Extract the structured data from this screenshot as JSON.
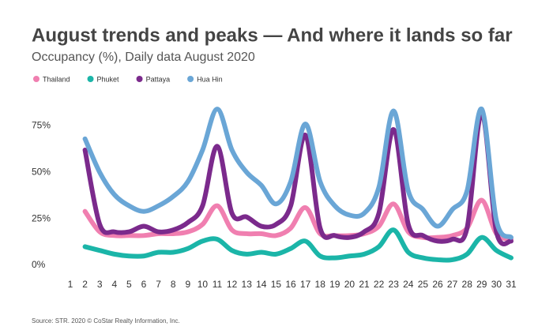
{
  "chart_data": {
    "type": "line",
    "title": "August trends and peaks — And where it lands so far",
    "subtitle": "Occupancy (%), Daily data August 2020",
    "source": "Source: STR. 2020 © CoStar Realty Information, Inc.",
    "x": [
      1,
      2,
      3,
      4,
      5,
      6,
      7,
      8,
      9,
      10,
      11,
      12,
      13,
      14,
      15,
      16,
      17,
      18,
      19,
      20,
      21,
      22,
      23,
      24,
      25,
      26,
      27,
      28,
      29,
      30,
      31
    ],
    "xlim": [
      1,
      31
    ],
    "ylim": [
      0,
      90
    ],
    "yticks": [
      {
        "value": 0,
        "label": "0%"
      },
      {
        "value": 25,
        "label": "25%"
      },
      {
        "value": 50,
        "label": "50%"
      },
      {
        "value": 75,
        "label": "75%"
      }
    ],
    "series": [
      {
        "name": "Thailand",
        "color": "#f07fb0",
        "values": [
          null,
          29,
          18,
          16,
          16,
          16,
          17,
          17,
          18,
          22,
          32,
          19,
          17,
          17,
          16,
          20,
          31,
          17,
          16,
          16,
          17,
          21,
          33,
          18,
          15,
          15,
          16,
          20,
          35,
          17,
          14
        ]
      },
      {
        "name": "Phuket",
        "color": "#1bb5a8",
        "values": [
          null,
          10,
          8,
          6,
          5,
          5,
          7,
          7,
          9,
          13,
          14,
          8,
          6,
          7,
          6,
          9,
          13,
          5,
          4,
          5,
          6,
          10,
          19,
          7,
          4,
          3,
          3,
          6,
          15,
          8,
          4
        ]
      },
      {
        "name": "Pattaya",
        "color": "#7b2a8c",
        "values": [
          null,
          62,
          22,
          18,
          18,
          21,
          18,
          19,
          23,
          32,
          64,
          28,
          26,
          21,
          22,
          32,
          70,
          20,
          16,
          15,
          18,
          28,
          73,
          22,
          16,
          13,
          14,
          20,
          82,
          18,
          13
        ]
      },
      {
        "name": "Hua Hin",
        "color": "#6aa6d6",
        "values": [
          null,
          68,
          50,
          38,
          32,
          29,
          32,
          37,
          45,
          62,
          84,
          62,
          50,
          43,
          33,
          45,
          76,
          45,
          32,
          27,
          28,
          42,
          83,
          40,
          30,
          21,
          30,
          40,
          84,
          24,
          15
        ]
      }
    ]
  }
}
